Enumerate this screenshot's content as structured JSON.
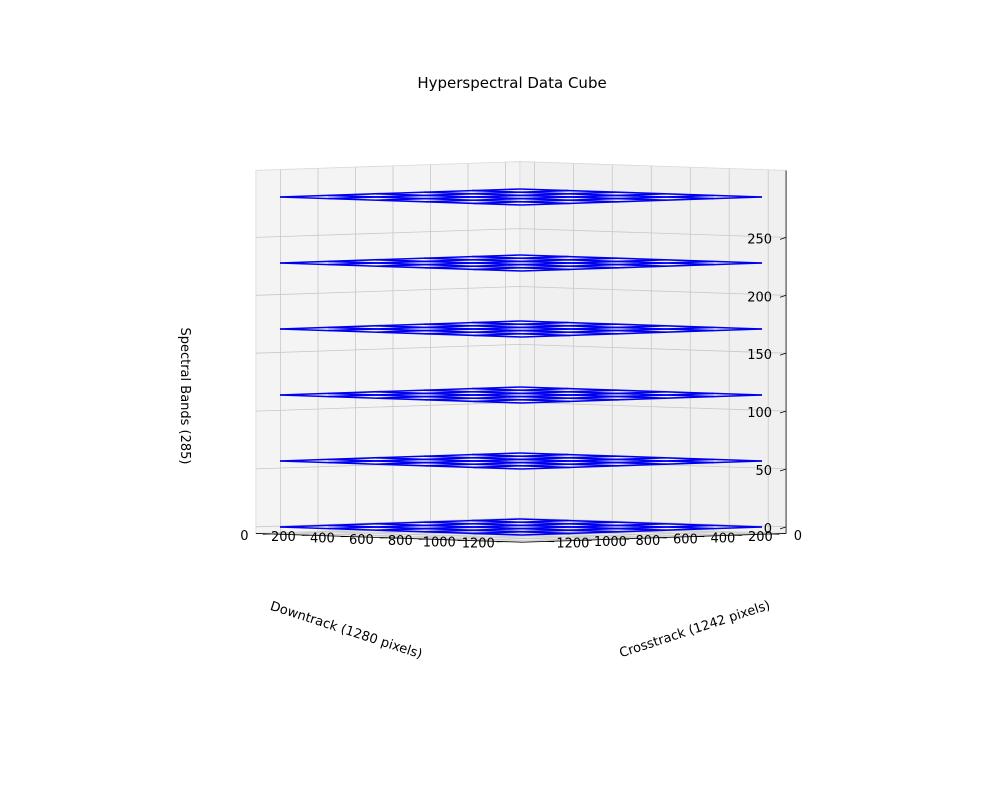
{
  "chart_data": {
    "type": "3d-wireframe",
    "title": "Hyperspectral Data Cube",
    "xlabel": "Crosstrack (1242 pixels)",
    "ylabel": "Downtrack (1280 pixels)",
    "zlabel": "Spectral Bands (285)",
    "xlim": [
      0,
      1242
    ],
    "ylim": [
      0,
      1280
    ],
    "zlim": [
      0,
      285
    ],
    "x_ticks": [
      0,
      200,
      400,
      600,
      800,
      1000,
      1200
    ],
    "y_ticks": [
      0,
      200,
      400,
      600,
      800,
      1000,
      1200
    ],
    "z_ticks": [
      0,
      50,
      100,
      150,
      200,
      250
    ],
    "band_layers": [
      0,
      57,
      114,
      171,
      228,
      285
    ],
    "grid_lines_per_axis": [
      0,
      248.4,
      496.8,
      745.2,
      993.6,
      1242
    ],
    "grid_lines_downtrack": [
      0,
      256,
      512,
      768,
      1024,
      1280
    ],
    "wire_color": "#0000ee",
    "pane_color": "#f2f2f2",
    "grid": true
  }
}
